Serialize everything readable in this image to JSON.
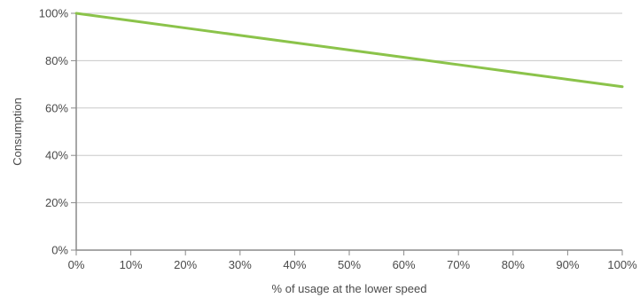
{
  "chart_data": {
    "type": "line",
    "title": "",
    "xlabel": "% of usage at the lower speed",
    "ylabel": "Consumption",
    "x": [
      0,
      10,
      20,
      30,
      40,
      50,
      60,
      70,
      80,
      90,
      100
    ],
    "series": [
      {
        "values": [
          100,
          96.9,
          93.8,
          90.7,
          87.6,
          84.5,
          81.4,
          78.3,
          75.2,
          72.1,
          69
        ],
        "color": "#8bc34a"
      }
    ],
    "xlim": [
      0,
      100
    ],
    "ylim": [
      0,
      100
    ],
    "x_tick_values": [
      0,
      10,
      20,
      30,
      40,
      50,
      60,
      70,
      80,
      90,
      100
    ],
    "x_tick_labels": [
      "0%",
      "10%",
      "20%",
      "30%",
      "40%",
      "50%",
      "60%",
      "70%",
      "80%",
      "90%",
      "100%"
    ],
    "y_tick_values": [
      0,
      20,
      40,
      60,
      80,
      100
    ],
    "y_tick_labels": [
      "0%",
      "20%",
      "40%",
      "60%",
      "80%",
      "100%"
    ],
    "grid": "horizontal",
    "legend": "none",
    "colors": {
      "line": "#8bc34a",
      "grid": "#c8c8c8",
      "axis": "#8a8a8a",
      "text": "#4a4a4a"
    }
  }
}
